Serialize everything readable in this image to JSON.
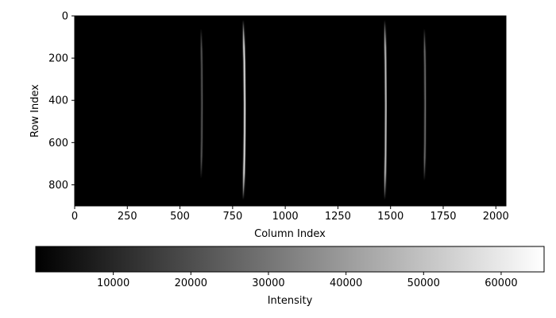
{
  "chart_data": {
    "type": "heatmap",
    "title": "",
    "xlabel": "Column Index",
    "ylabel": "Row Index",
    "xlim": [
      0,
      2048
    ],
    "ylim": [
      900,
      0
    ],
    "x_ticks": [
      "0",
      "250",
      "500",
      "750",
      "1000",
      "1250",
      "1500",
      "1750",
      "2000"
    ],
    "y_ticks": [
      "0",
      "200",
      "400",
      "600",
      "800"
    ],
    "colormap": "gray",
    "background_intensity": 0,
    "features": [
      {
        "center_col": 600,
        "curve_col": 5,
        "row_start": 60,
        "row_end": 770,
        "peak_intensity": 22000
      },
      {
        "center_col": 800,
        "curve_col": 8,
        "row_start": 20,
        "row_end": 870,
        "peak_intensity": 60000
      },
      {
        "center_col": 1472,
        "curve_col": 6,
        "row_start": 20,
        "row_end": 870,
        "peak_intensity": 50000
      },
      {
        "center_col": 1660,
        "curve_col": 5,
        "row_start": 60,
        "row_end": 780,
        "peak_intensity": 28000
      }
    ],
    "colorbar": {
      "label": "Intensity",
      "range": [
        0,
        65535
      ],
      "ticks": [
        "10000",
        "20000",
        "30000",
        "40000",
        "50000",
        "60000"
      ]
    }
  }
}
